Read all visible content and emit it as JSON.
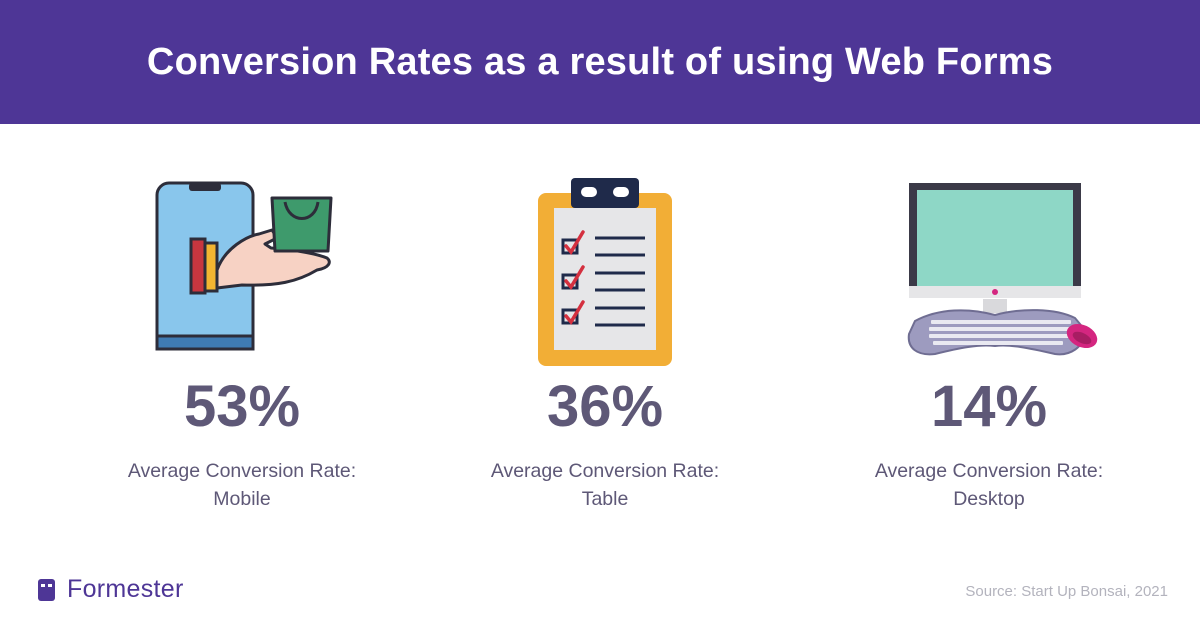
{
  "header": {
    "title": "Conversion Rates as a result of using Web Forms"
  },
  "chart_data": {
    "type": "table",
    "title": "Conversion Rates as a result of using Web Forms",
    "categories": [
      "Mobile",
      "Table",
      "Desktop"
    ],
    "values": [
      53,
      36,
      14
    ],
    "unit": "%",
    "items": [
      {
        "value_label": "53%",
        "label_line1": "Average Conversion Rate:",
        "label_line2": "Mobile",
        "icon": "smartphone-shopping-icon"
      },
      {
        "value_label": "36%",
        "label_line1": "Average Conversion Rate:",
        "label_line2": "Table",
        "icon": "clipboard-checklist-icon"
      },
      {
        "value_label": "14%",
        "label_line1": "Average Conversion Rate:",
        "label_line2": "Desktop",
        "icon": "desktop-computer-icon"
      }
    ]
  },
  "footer": {
    "brand": "Formester",
    "source": "Source: Start Up Bonsai, 2021"
  },
  "colors": {
    "banner": "#4e3696",
    "text": "#5e5877",
    "source": "#b3b3bd"
  }
}
